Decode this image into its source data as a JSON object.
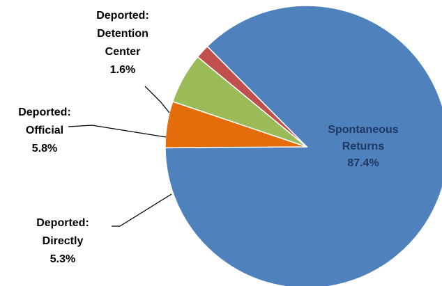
{
  "chart_data": {
    "type": "pie",
    "title": "",
    "slices": [
      {
        "name": "Spontaneous Returns",
        "label_lines": [
          "Spontaneous",
          "Returns"
        ],
        "value": 87.4,
        "value_label": "87.4%",
        "color": "#4F81BD",
        "label_color": "#1F3864"
      },
      {
        "name": "Deported: Directly",
        "label_lines": [
          "Deported:",
          "Directly"
        ],
        "value": 5.3,
        "value_label": "5.3%",
        "color": "#E46C0A",
        "label_color": "#000000"
      },
      {
        "name": "Deported: Official",
        "label_lines": [
          "Deported:",
          "Official"
        ],
        "value": 5.8,
        "value_label": "5.8%",
        "color": "#9BBB59",
        "label_color": "#000000"
      },
      {
        "name": "Deported: Detention Center",
        "label_lines": [
          "Deported:",
          "Detention",
          "Center"
        ],
        "value": 1.6,
        "value_label": "1.6%",
        "color": "#C0504D",
        "label_color": "#000000"
      }
    ],
    "legend": "none"
  }
}
